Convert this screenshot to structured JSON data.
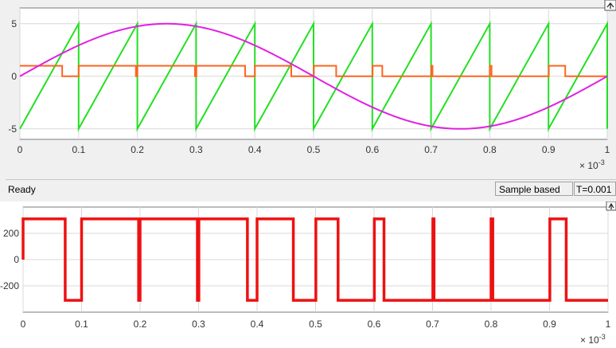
{
  "status": {
    "ready": "Ready",
    "mode": "Sample based",
    "time": "T=0.001"
  },
  "colors": {
    "sine": "#e020e0",
    "sawtooth": "#22e022",
    "comparator": "#ff6420",
    "pwm": "#ee1111",
    "grid": "#d8d8d8"
  },
  "chart_data": [
    {
      "type": "line",
      "x_ticks": [
        "0",
        "0.1",
        "0.2",
        "0.3",
        "0.4",
        "0.5",
        "0.6",
        "0.7",
        "0.8",
        "0.9",
        "1"
      ],
      "y_ticks": [
        "-5",
        "0",
        "5"
      ],
      "x_exponent": "× 10-3",
      "xlim": [
        0,
        1
      ],
      "ylim": [
        -6,
        6.5
      ],
      "grid": true,
      "series": [
        {
          "key": "sine",
          "amplitude": 5,
          "period": 1,
          "color": "#e020e0"
        },
        {
          "key": "sawtooth",
          "min": -5,
          "max": 5,
          "period": 0.1,
          "color": "#22e022"
        },
        {
          "key": "comparator",
          "high": 1,
          "low": 0,
          "color": "#ff6420"
        }
      ]
    },
    {
      "type": "line",
      "x_ticks": [
        "0",
        "0.1",
        "0.2",
        "0.3",
        "0.4",
        "0.5",
        "0.6",
        "0.7",
        "0.8",
        "0.9",
        "1"
      ],
      "y_ticks": [
        "-200",
        "0",
        "200"
      ],
      "x_exponent": "× 10-3",
      "xlim": [
        0,
        1
      ],
      "ylim": [
        -400,
        400
      ],
      "grid": true,
      "series": [
        {
          "key": "pwm",
          "high": 310,
          "low": -310,
          "color": "#ee1111"
        }
      ]
    }
  ]
}
